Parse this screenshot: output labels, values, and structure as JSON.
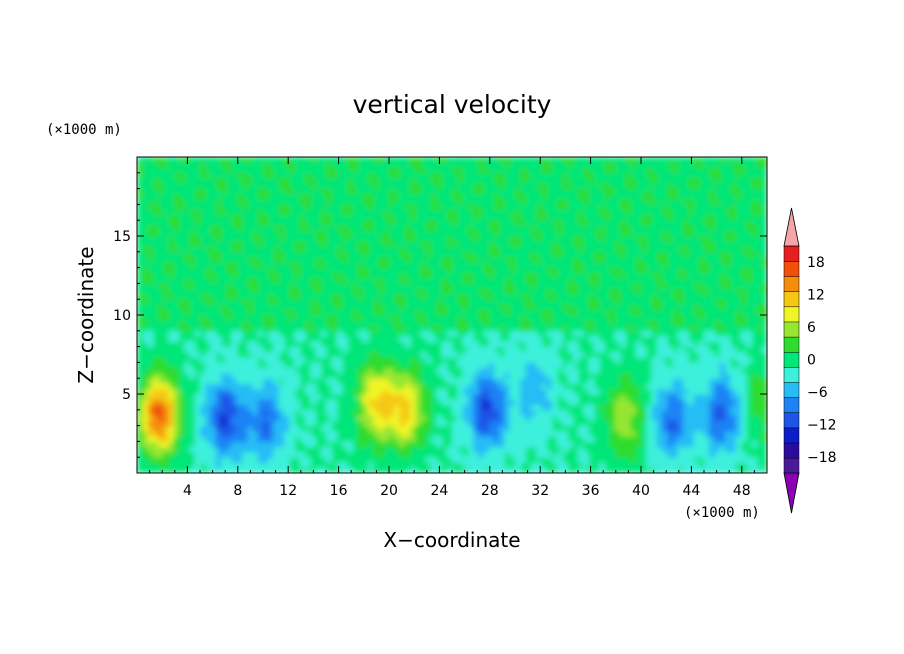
{
  "chart_data": {
    "type": "heatmap",
    "title": "vertical velocity",
    "xlabel": "X−coordinate",
    "ylabel": "Z−coordinate",
    "x_unit": "(×1000 m)",
    "y_unit": "(×1000 m)",
    "xlim": [
      0,
      50
    ],
    "ylim": [
      0,
      20
    ],
    "x_ticks": [
      4,
      8,
      12,
      16,
      20,
      24,
      28,
      32,
      36,
      40,
      44,
      48
    ],
    "y_ticks": [
      5,
      10,
      15
    ],
    "colorbar": {
      "levels": [
        -21,
        -18,
        -15,
        -12,
        -9,
        -6,
        -3,
        0,
        3,
        6,
        9,
        12,
        15,
        18,
        21
      ],
      "tick_labels": [
        "18",
        "12",
        "6",
        "0",
        "−6",
        "−12",
        "−18"
      ],
      "tick_values": [
        18,
        12,
        6,
        0,
        -6,
        -12,
        -18
      ],
      "colors": [
        "#4b1a9b",
        "#2a0ba0",
        "#0b1ec8",
        "#1e55e6",
        "#1e82f5",
        "#28bcf5",
        "#3cf0dc",
        "#00e678",
        "#2ddc2d",
        "#96e632",
        "#f0f528",
        "#f5c814",
        "#f58c0a",
        "#f0500a",
        "#e61e1e"
      ],
      "under_color": "#8c00b4",
      "over_color": "#f5a5a5"
    },
    "features": [
      {
        "x": 1.8,
        "z": 3.7,
        "value": 19
      },
      {
        "x": 7.0,
        "z": 3.5,
        "value": -12
      },
      {
        "x": 10.2,
        "z": 3.3,
        "value": -9
      },
      {
        "x": 19.0,
        "z": 4.5,
        "value": 12
      },
      {
        "x": 21.4,
        "z": 4.0,
        "value": 12
      },
      {
        "x": 27.8,
        "z": 4.0,
        "value": -12
      },
      {
        "x": 31.5,
        "z": 5.2,
        "value": -5
      },
      {
        "x": 38.7,
        "z": 3.5,
        "value": 8
      },
      {
        "x": 42.5,
        "z": 3.4,
        "value": -9
      },
      {
        "x": 46.4,
        "z": 3.8,
        "value": -10
      },
      {
        "x": 49.7,
        "z": 4.5,
        "value": 5
      }
    ]
  }
}
